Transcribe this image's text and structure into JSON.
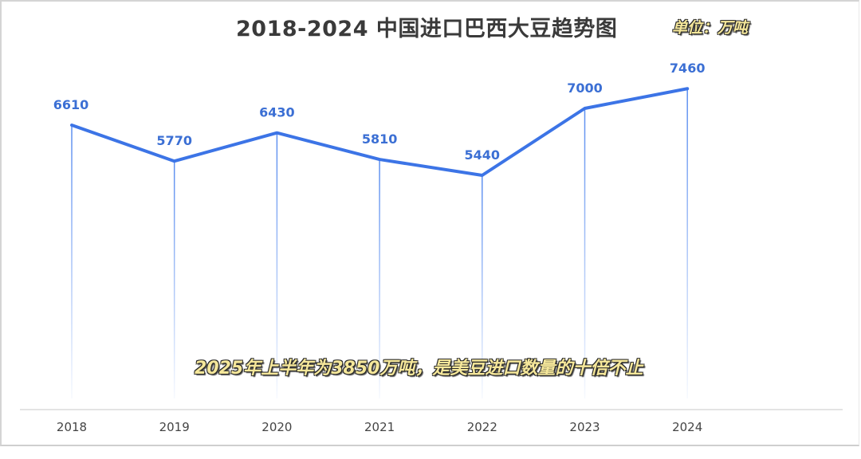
{
  "header": {
    "title": "2018-2024 中国进口巴西大豆趋势图",
    "unit": "单位：万吨"
  },
  "annotation": "2025年上半年为3850万吨，是美豆进口数量的十倍不止",
  "colors": {
    "line": "#3c74e6",
    "value_label": "#3b6fd4",
    "title": "#3a3a3a",
    "highlight_text": "#f5e79a"
  },
  "chart_data": {
    "type": "line",
    "title": "2018-2024 中国进口巴西大豆趋势图",
    "unit": "万吨",
    "xlabel": "",
    "ylabel": "",
    "categories": [
      "2018",
      "2019",
      "2020",
      "2021",
      "2022",
      "2023",
      "2024"
    ],
    "series": [
      {
        "name": "中国进口巴西大豆",
        "values": [
          6610,
          5770,
          6430,
          5810,
          5440,
          7000,
          7460
        ]
      }
    ],
    "data_labels": [
      "6610",
      "5770",
      "6430",
      "5810",
      "5440",
      "7000",
      "7460"
    ],
    "grid": false,
    "legend": "none",
    "annotations": [
      "2025年上半年为3850万吨，是美豆进口数量的十倍不止"
    ]
  }
}
